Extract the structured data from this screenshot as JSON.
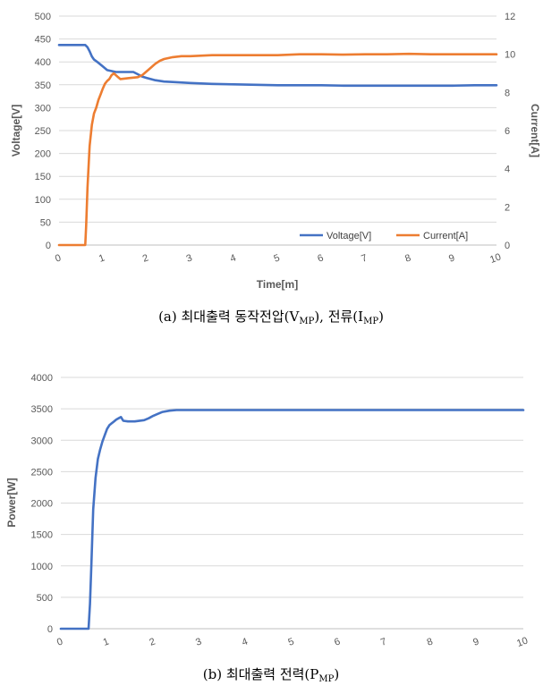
{
  "chart_data": [
    {
      "type": "line",
      "caption": {
        "prefix": "(a) 최대출력 동작전압(V",
        "sub1": "MP",
        "mid": "), 전류(I",
        "sub2": "MP",
        "suffix": ")"
      },
      "xlabel": "Time[m]",
      "ylabel": "Voltage[V]",
      "y2label": "Current[A]",
      "xlim": [
        0,
        10
      ],
      "ylim": [
        0,
        500
      ],
      "y2lim": [
        0,
        12
      ],
      "xticks": [
        "0",
        "1",
        "2",
        "3",
        "4",
        "5",
        "6",
        "7",
        "8",
        "9",
        "10"
      ],
      "yticks": [
        "0",
        "50",
        "100",
        "150",
        "200",
        "250",
        "300",
        "350",
        "400",
        "450",
        "500"
      ],
      "y2ticks": [
        "0",
        "2",
        "4",
        "6",
        "8",
        "10",
        "12"
      ],
      "grid": true,
      "legend": "bottom-right",
      "series": [
        {
          "name": "Voltage[V]",
          "axis": "left",
          "color": "#4472C4",
          "x": [
            0,
            0.3,
            0.55,
            0.6,
            0.65,
            0.7,
            0.75,
            0.8,
            0.9,
            1.0,
            1.1,
            1.3,
            1.5,
            1.7,
            1.8,
            1.9,
            2.0,
            2.2,
            2.4,
            2.6,
            3.0,
            3.5,
            4.0,
            4.5,
            5.0,
            5.5,
            6.0,
            6.5,
            7.0,
            7.5,
            8.0,
            8.5,
            9.0,
            9.5,
            10.0
          ],
          "y": [
            437,
            437,
            437,
            437,
            432,
            423,
            412,
            405,
            398,
            390,
            382,
            378,
            378,
            378,
            373,
            368,
            365,
            360,
            357,
            356,
            354,
            352,
            351,
            350,
            349,
            349,
            349,
            348,
            348,
            348,
            348,
            348,
            348,
            349,
            349
          ]
        },
        {
          "name": "Current[A]",
          "axis": "right",
          "color": "#ED7D31",
          "x": [
            0,
            0.4,
            0.55,
            0.6,
            0.62,
            0.65,
            0.7,
            0.75,
            0.8,
            0.85,
            0.9,
            0.95,
            1.0,
            1.05,
            1.1,
            1.15,
            1.2,
            1.25,
            1.3,
            1.35,
            1.4,
            1.6,
            1.8,
            1.9,
            2.0,
            2.1,
            2.2,
            2.3,
            2.4,
            2.6,
            2.8,
            3.0,
            3.5,
            4.0,
            4.5,
            5.0,
            5.5,
            6.0,
            6.5,
            7.0,
            7.5,
            8.0,
            8.5,
            9.0,
            9.5,
            10.0
          ],
          "y": [
            0,
            0,
            0,
            0,
            1.0,
            3.0,
            5.2,
            6.3,
            6.9,
            7.2,
            7.6,
            7.9,
            8.2,
            8.45,
            8.6,
            8.7,
            8.9,
            9.0,
            8.9,
            8.8,
            8.7,
            8.75,
            8.8,
            8.9,
            9.1,
            9.3,
            9.5,
            9.65,
            9.75,
            9.85,
            9.9,
            9.9,
            9.95,
            9.95,
            9.95,
            9.95,
            10.0,
            10.0,
            9.98,
            10.0,
            10.0,
            10.02,
            10.0,
            10.0,
            10.0,
            10.0
          ]
        }
      ]
    },
    {
      "type": "line",
      "caption": {
        "prefix": "(b) 최대출력 전력(P",
        "sub1": "MP",
        "suffix": ")"
      },
      "xlabel": "",
      "ylabel": "Power[W]",
      "xlim": [
        0,
        10
      ],
      "ylim": [
        0,
        4000
      ],
      "xticks": [
        "0",
        "1",
        "2",
        "3",
        "4",
        "5",
        "6",
        "7",
        "8",
        "9",
        "10"
      ],
      "yticks": [
        "0",
        "500",
        "1000",
        "1500",
        "2000",
        "2500",
        "3000",
        "3500",
        "4000"
      ],
      "grid": true,
      "legend": "none",
      "series": [
        {
          "name": "",
          "axis": "left",
          "color": "#4472C4",
          "x": [
            0,
            0.3,
            0.55,
            0.6,
            0.63,
            0.66,
            0.7,
            0.75,
            0.8,
            0.85,
            0.9,
            0.95,
            1.0,
            1.05,
            1.1,
            1.15,
            1.2,
            1.25,
            1.3,
            1.35,
            1.45,
            1.6,
            1.8,
            1.9,
            2.0,
            2.1,
            2.2,
            2.35,
            2.5,
            2.7,
            3.0,
            4.0,
            5.0,
            6.0,
            7.0,
            8.0,
            9.0,
            10.0
          ],
          "y": [
            0,
            0,
            0,
            0,
            400,
            1000,
            1900,
            2400,
            2700,
            2850,
            2980,
            3080,
            3180,
            3240,
            3270,
            3300,
            3330,
            3350,
            3370,
            3310,
            3300,
            3300,
            3320,
            3350,
            3390,
            3420,
            3450,
            3470,
            3480,
            3480,
            3480,
            3480,
            3480,
            3480,
            3480,
            3480,
            3480,
            3480
          ]
        }
      ]
    }
  ]
}
